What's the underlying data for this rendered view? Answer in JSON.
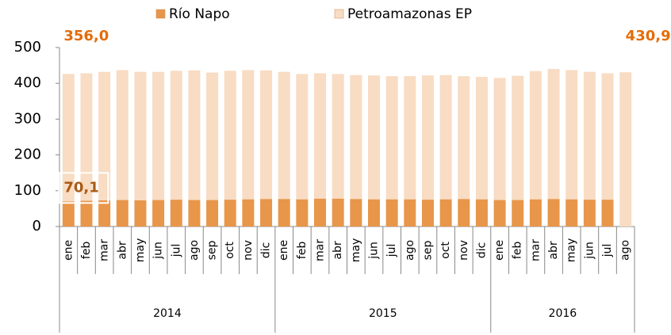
{
  "chart_data": {
    "type": "stacked_bar",
    "categories": [
      [
        "ene",
        "2014"
      ],
      [
        "feb",
        "2014"
      ],
      [
        "mar",
        "2014"
      ],
      [
        "abr",
        "2014"
      ],
      [
        "may",
        "2014"
      ],
      [
        "jun",
        "2014"
      ],
      [
        "jul",
        "2014"
      ],
      [
        "ago",
        "2014"
      ],
      [
        "sep",
        "2014"
      ],
      [
        "oct",
        "2014"
      ],
      [
        "nov",
        "2014"
      ],
      [
        "dic",
        "2014"
      ],
      [
        "ene",
        "2015"
      ],
      [
        "feb",
        "2015"
      ],
      [
        "mar",
        "2015"
      ],
      [
        "abr",
        "2015"
      ],
      [
        "may",
        "2015"
      ],
      [
        "jun",
        "2015"
      ],
      [
        "jul",
        "2015"
      ],
      [
        "ago",
        "2015"
      ],
      [
        "sep",
        "2015"
      ],
      [
        "oct",
        "2015"
      ],
      [
        "nov",
        "2015"
      ],
      [
        "dic",
        "2015"
      ],
      [
        "ene",
        "2016"
      ],
      [
        "feb",
        "2016"
      ],
      [
        "mar",
        "2016"
      ],
      [
        "abr",
        "2016"
      ],
      [
        "may",
        "2016"
      ],
      [
        "jun",
        "2016"
      ],
      [
        "jul",
        "2016"
      ],
      [
        "ago",
        "2016"
      ]
    ],
    "series": [
      {
        "name": "Río Napo",
        "color": "#e8964a",
        "values": [
          70.1,
          72,
          73,
          74,
          73,
          74,
          75,
          74,
          74,
          75,
          76,
          77,
          77,
          76,
          78,
          78,
          77,
          76,
          76,
          76,
          75,
          76,
          77,
          76,
          74,
          74,
          76,
          77,
          76,
          75,
          75,
          0
        ],
        "value_labels": [
          "70,1",
          null,
          null,
          null,
          null,
          null,
          null,
          null,
          null,
          null,
          null,
          null,
          null,
          null,
          null,
          null,
          null,
          null,
          null,
          null,
          null,
          null,
          null,
          null,
          null,
          null,
          null,
          null,
          null,
          null,
          null,
          null
        ]
      },
      {
        "name": "Petroamazonas EP",
        "color": "#f8dcc3",
        "values": [
          356.0,
          356,
          359,
          363,
          359,
          358,
          360,
          362,
          356,
          360,
          361,
          359,
          355,
          350,
          350,
          348,
          346,
          346,
          344,
          344,
          347,
          347,
          343,
          342,
          341,
          347,
          358,
          363,
          361,
          357,
          353,
          430.9
        ],
        "value_labels": [
          "356,0",
          null,
          null,
          null,
          null,
          null,
          null,
          null,
          null,
          null,
          null,
          null,
          null,
          null,
          null,
          null,
          null,
          null,
          null,
          null,
          null,
          null,
          null,
          null,
          null,
          null,
          null,
          null,
          null,
          null,
          null,
          "430,9"
        ]
      }
    ],
    "ylim": [
      0,
      500
    ],
    "yticks": [
      0,
      100,
      200,
      300,
      400,
      500
    ],
    "grid": false,
    "legend": "top"
  }
}
